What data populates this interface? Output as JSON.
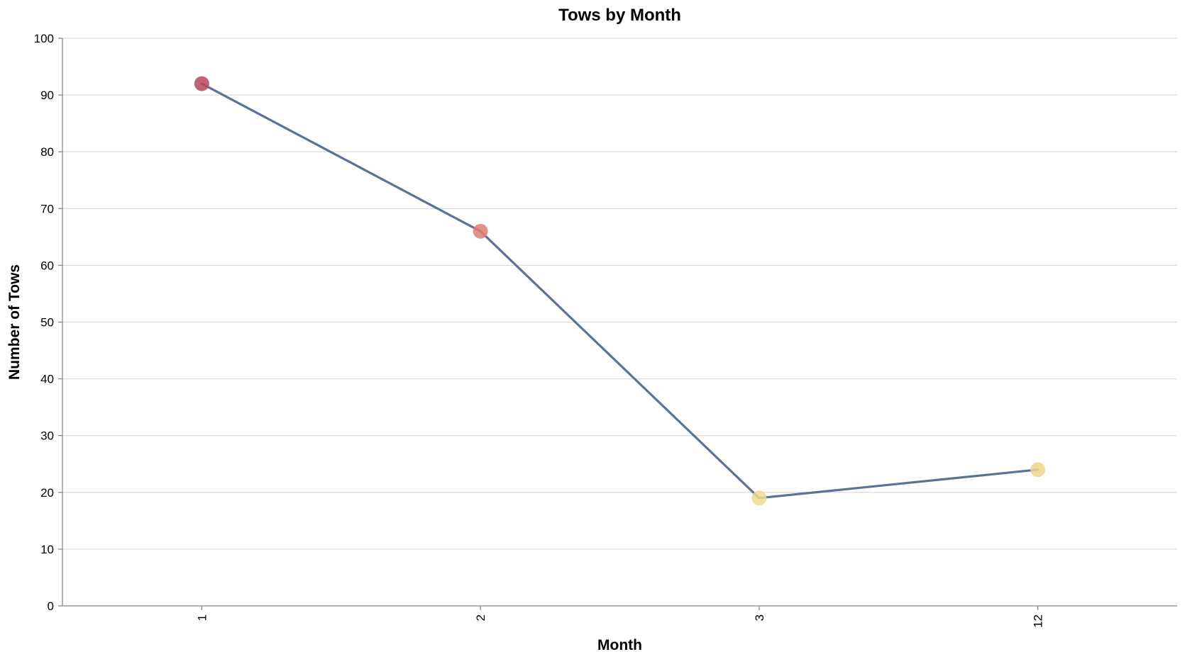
{
  "chart_data": {
    "type": "line",
    "title": "Tows by Month",
    "xlabel": "Month",
    "ylabel": "Number of Tows",
    "categories": [
      "1",
      "2",
      "3",
      "12"
    ],
    "series": [
      {
        "values": [
          92,
          66,
          19,
          24
        ]
      }
    ],
    "ylim": [
      0,
      100
    ],
    "yticks": [
      0,
      10,
      20,
      30,
      40,
      50,
      60,
      70,
      80,
      90,
      100
    ],
    "grid": true,
    "line_color": "#5b7298",
    "point_colors": [
      "#b5485f",
      "#de7f74",
      "#f0d88e",
      "#f0d38a"
    ],
    "color_scale_range": [
      19,
      92
    ],
    "legend": "none"
  }
}
